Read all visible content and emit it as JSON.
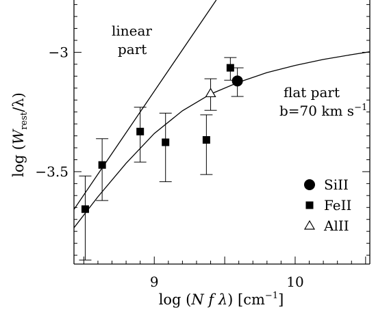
{
  "chart_data": {
    "type": "scatter",
    "title": "",
    "xlabel": {
      "pre": "log (",
      "main": "N f λ",
      "post": ") [cm",
      "sup": "−1",
      "close": "]"
    },
    "ylabel": {
      "pre": "log (",
      "main": "W",
      "sub": "rest",
      "post": "/λ)"
    },
    "xlim": [
      8.43,
      10.53
    ],
    "ylim": [
      -3.887,
      -2.781
    ],
    "x_ticks": [
      {
        "value": 9,
        "label": "9"
      },
      {
        "value": 10,
        "label": "10"
      }
    ],
    "y_ticks": [
      {
        "value": -3,
        "label": "−3"
      },
      {
        "value": -3.5,
        "label": "−3.5"
      }
    ],
    "series": [
      {
        "name": "SiII",
        "marker": "filled-circle",
        "points": [
          {
            "x": 9.59,
            "y": -3.12,
            "err_low": 0.065,
            "err_high": 0.055
          }
        ]
      },
      {
        "name": "FeII",
        "marker": "filled-square",
        "points": [
          {
            "x": 8.51,
            "y": -3.657,
            "err_low": 0.213,
            "err_high": 0.139
          },
          {
            "x": 8.63,
            "y": -3.472,
            "err_low": 0.149,
            "err_high": 0.11
          },
          {
            "x": 8.9,
            "y": -3.332,
            "err_low": 0.128,
            "err_high": 0.102
          },
          {
            "x": 9.08,
            "y": -3.377,
            "err_low": 0.165,
            "err_high": 0.122
          },
          {
            "x": 9.37,
            "y": -3.367,
            "err_low": 0.145,
            "err_high": 0.105
          },
          {
            "x": 9.54,
            "y": -3.065,
            "err_low": 0.052,
            "err_high": 0.043
          }
        ]
      },
      {
        "name": "AlII",
        "marker": "open-triangle",
        "points": [
          {
            "x": 9.4,
            "y": -3.172,
            "err_low": 0.071,
            "err_high": 0.061
          }
        ]
      }
    ],
    "curves": [
      {
        "name": "linear part",
        "points": [
          [
            8.43,
            -3.658
          ],
          [
            9.44,
            -2.781
          ]
        ]
      },
      {
        "name": "flat part",
        "points": [
          [
            8.43,
            -3.735
          ],
          [
            8.6,
            -3.605
          ],
          [
            8.8,
            -3.465
          ],
          [
            9.0,
            -3.34
          ],
          [
            9.2,
            -3.245
          ],
          [
            9.4,
            -3.175
          ],
          [
            9.6,
            -3.125
          ],
          [
            9.8,
            -3.085
          ],
          [
            10.0,
            -3.055
          ],
          [
            10.2,
            -3.03
          ],
          [
            10.4,
            -3.01
          ],
          [
            10.53,
            -2.998
          ]
        ]
      }
    ],
    "annotations": {
      "linear": {
        "line1": "linear",
        "line2": "part"
      },
      "flat": {
        "line1": "flat part",
        "line2_pre": "b=70 km s",
        "line2_sup": "−1"
      }
    },
    "legend": {
      "placement": "bottom-right"
    }
  }
}
